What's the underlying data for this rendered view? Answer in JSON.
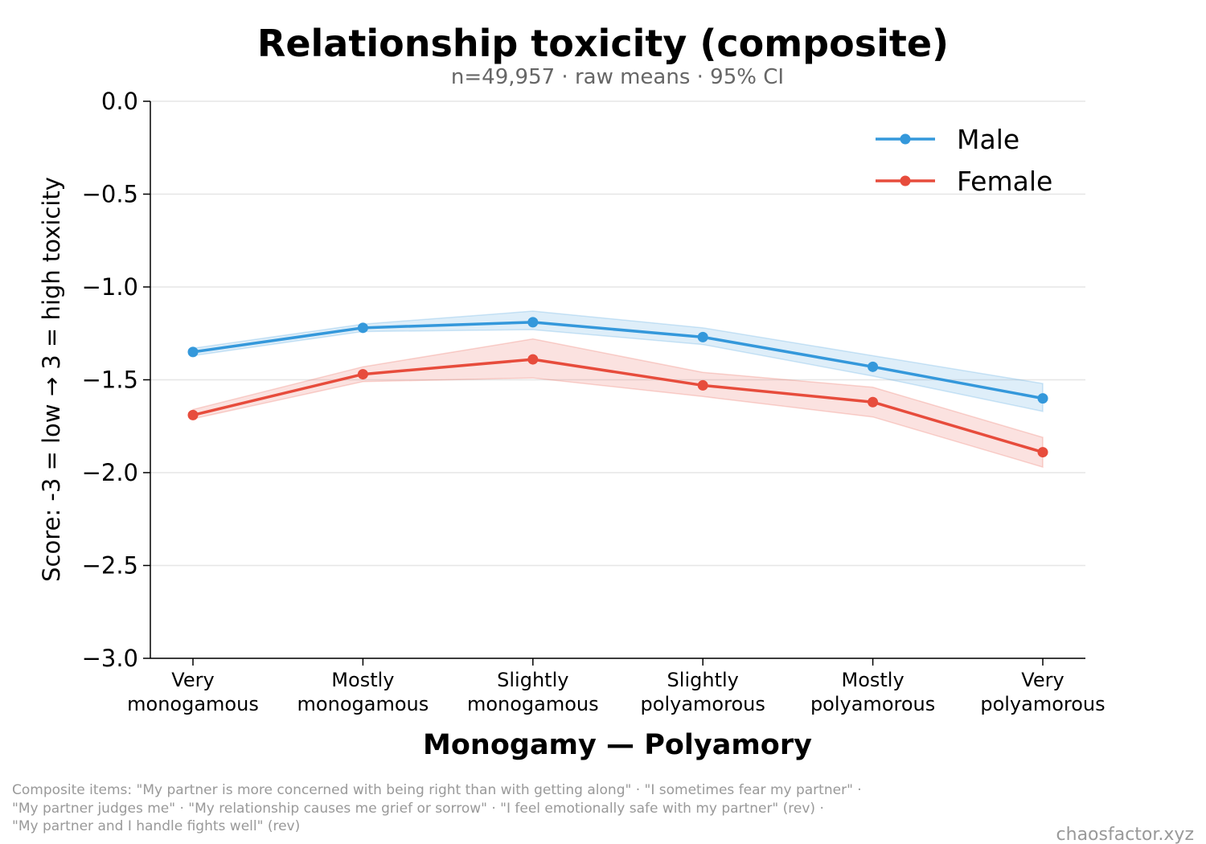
{
  "chart_data": {
    "type": "line",
    "title": "Relationship toxicity (composite)",
    "subtitle": "n=49,957 · raw means · 95% CI",
    "xlabel": "Monogamy — Polyamory",
    "ylabel": "Score: -3 = low → 3 = high toxicity",
    "categories": [
      [
        "Very",
        "monogamous"
      ],
      [
        "Mostly",
        "monogamous"
      ],
      [
        "Slightly",
        "monogamous"
      ],
      [
        "Slightly",
        "polyamorous"
      ],
      [
        "Mostly",
        "polyamorous"
      ],
      [
        "Very",
        "polyamorous"
      ]
    ],
    "ylim": [
      -3.0,
      0.0
    ],
    "yticks": [
      0.0,
      -0.5,
      -1.0,
      -1.5,
      -2.0,
      -2.5,
      -3.0
    ],
    "ytick_labels": [
      "0.0",
      "−0.5",
      "−1.0",
      "−1.5",
      "−2.0",
      "−2.5",
      "−3.0"
    ],
    "grid": "horizontal",
    "legend_position": "top-right",
    "series": [
      {
        "name": "Male",
        "color": "#3498db",
        "values": [
          -1.35,
          -1.22,
          -1.19,
          -1.27,
          -1.43,
          -1.6
        ],
        "ci_low": [
          -1.37,
          -1.24,
          -1.23,
          -1.31,
          -1.48,
          -1.67
        ],
        "ci_high": [
          -1.33,
          -1.2,
          -1.13,
          -1.22,
          -1.37,
          -1.52
        ]
      },
      {
        "name": "Female",
        "color": "#e74c3c",
        "values": [
          -1.69,
          -1.47,
          -1.39,
          -1.53,
          -1.62,
          -1.89
        ],
        "ci_low": [
          -1.71,
          -1.51,
          -1.49,
          -1.59,
          -1.7,
          -1.97
        ],
        "ci_high": [
          -1.66,
          -1.43,
          -1.28,
          -1.46,
          -1.54,
          -1.81
        ]
      }
    ]
  },
  "footnote": {
    "lines": [
      "Composite items: \"My partner is more concerned with being right than with getting along\" · \"I sometimes fear my partner\" ·",
      "\"My partner judges me\" · \"My relationship causes me grief or sorrow\" · \"I feel emotionally safe with my partner\" (rev) ·",
      "\"My partner and I handle fights well\" (rev)"
    ]
  },
  "watermark": "chaosfactor.xyz"
}
